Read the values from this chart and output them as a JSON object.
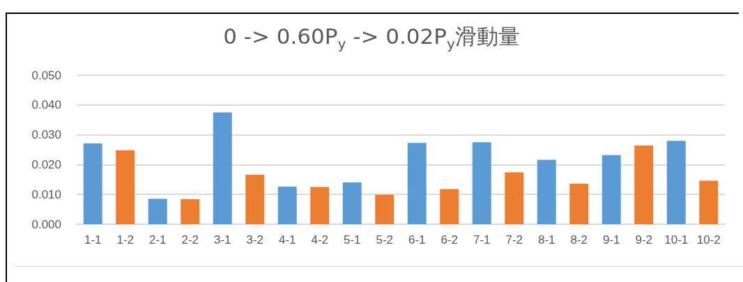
{
  "chart_data": {
    "type": "bar",
    "title": "0 -> 0.60P$_{y}$ -> 0.02P$_{y}$滑動量",
    "categories": [
      "1-1",
      "1-2",
      "2-1",
      "2-2",
      "3-1",
      "3-2",
      "4-1",
      "4-2",
      "5-1",
      "5-2",
      "6-1",
      "6-2",
      "7-1",
      "7-2",
      "8-1",
      "8-2",
      "9-1",
      "9-2",
      "10-1",
      "10-2"
    ],
    "values": [
      0.0271,
      0.0248,
      0.0085,
      0.0084,
      0.0375,
      0.0166,
      0.0126,
      0.0125,
      0.014,
      0.0099,
      0.0273,
      0.0118,
      0.0275,
      0.0174,
      0.0216,
      0.0136,
      0.0232,
      0.0264,
      0.028,
      0.0146
    ],
    "colors": [
      "#5b9bd5",
      "#ed7d31",
      "#5b9bd5",
      "#ed7d31",
      "#5b9bd5",
      "#ed7d31",
      "#5b9bd5",
      "#ed7d31",
      "#5b9bd5",
      "#ed7d31",
      "#5b9bd5",
      "#ed7d31",
      "#5b9bd5",
      "#ed7d31",
      "#5b9bd5",
      "#ed7d31",
      "#5b9bd5",
      "#ed7d31",
      "#5b9bd5",
      "#ed7d31"
    ],
    "ylim": [
      0,
      0.05
    ],
    "yticks": [
      {
        "value": 0,
        "label": "0.000"
      },
      {
        "value": 0.01,
        "label": "0.010"
      },
      {
        "value": 0.02,
        "label": "0.020"
      },
      {
        "value": 0.03,
        "label": "0.030"
      },
      {
        "value": 0.04,
        "label": "0.040"
      },
      {
        "value": 0.05,
        "label": "0.050"
      }
    ],
    "grid": "y"
  }
}
